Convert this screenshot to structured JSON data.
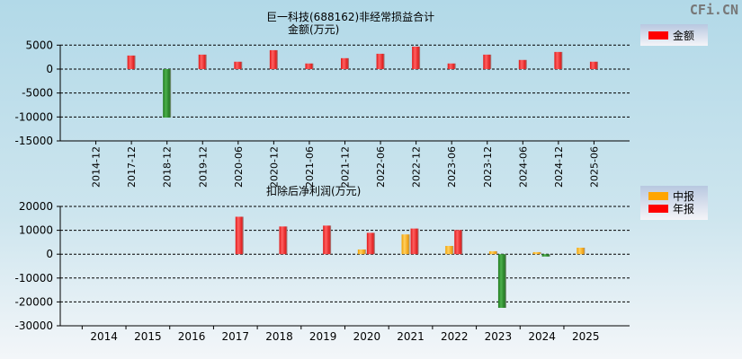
{
  "watermark": "CFi.CN",
  "chart_data": [
    {
      "type": "bar",
      "title": "巨一科技(688162)非经常损益合计",
      "subtitle": "金额(万元)",
      "categories": [
        "2014-12",
        "2017-12",
        "2018-12",
        "2019-12",
        "2020-06",
        "2020-12",
        "2021-06",
        "2021-12",
        "2022-06",
        "2022-12",
        "2023-06",
        "2023-12",
        "2024-06",
        "2024-12",
        "2025-06"
      ],
      "series": [
        {
          "name": "金额",
          "values": [
            null,
            2830,
            -10130,
            3020,
            1540,
            3950,
            1170,
            2280,
            3200,
            4690,
            1170,
            3020,
            1910,
            3580,
            1540
          ]
        }
      ],
      "ylim": [
        -15000,
        5000
      ],
      "yticks": [
        5000,
        0,
        -5000,
        -10000,
        -15000
      ],
      "grid": true,
      "legend": "top-right",
      "colors": {
        "positive": "#ff2020",
        "negative": "#2e8b2e"
      }
    },
    {
      "type": "bar",
      "title": "扣除后净利润(万元)",
      "categories": [
        "2014",
        "2015",
        "2016",
        "2017",
        "2018",
        "2019",
        "2020",
        "2021",
        "2022",
        "2023",
        "2024",
        "2025"
      ],
      "series": [
        {
          "name": "中报",
          "values": [
            null,
            null,
            null,
            null,
            null,
            null,
            1970,
            8270,
            3460,
            1230,
            860,
            2710
          ]
        },
        {
          "name": "年报",
          "values": [
            null,
            null,
            null,
            15680,
            11600,
            11970,
            8950,
            10740,
            10120,
            -22470,
            -990,
            null
          ]
        }
      ],
      "ylim": [
        -30000,
        20000
      ],
      "yticks": [
        20000,
        10000,
        0,
        -10000,
        -20000,
        -30000
      ],
      "grid": true,
      "legend": "top-right",
      "colors": {
        "中报": "#ffa500",
        "年报": "#ff2020",
        "negative": "#2e8b2e"
      }
    }
  ]
}
